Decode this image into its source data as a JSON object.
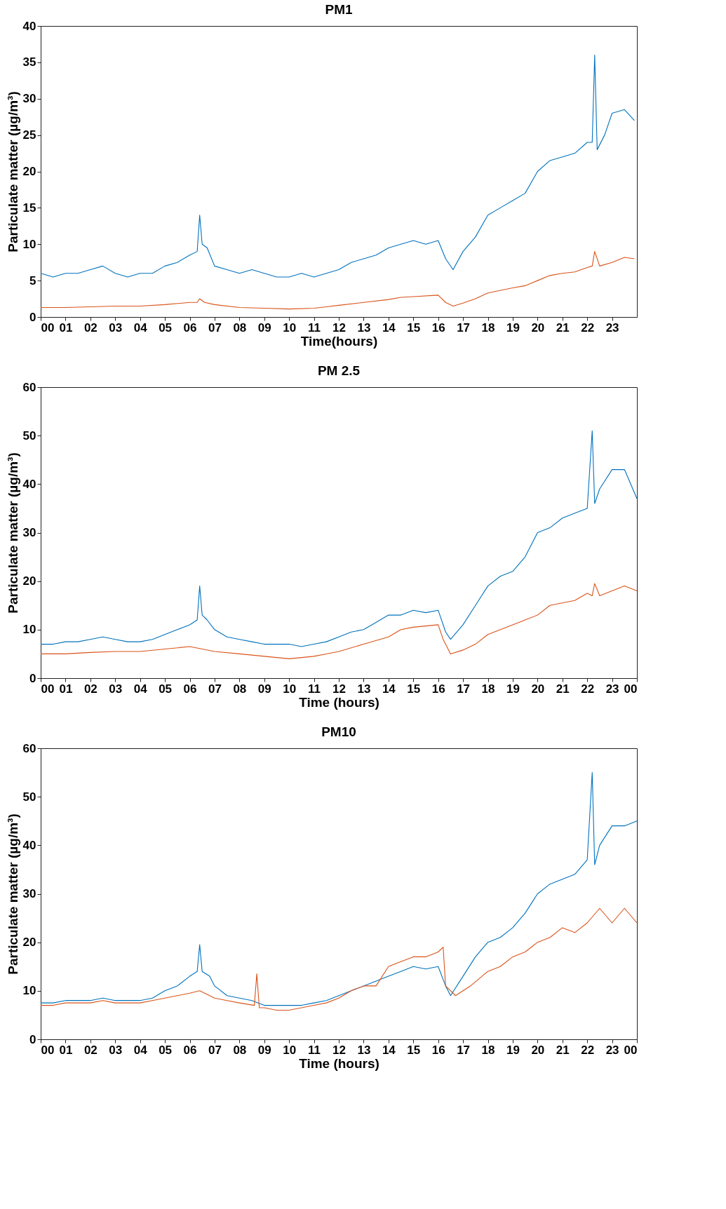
{
  "chart_data": [
    {
      "type": "line",
      "title": "PM1",
      "xlabel": "Time(hours)",
      "ylabel": "Particulate matter (µg/m³)",
      "xlim": [
        0,
        24
      ],
      "ylim": [
        0,
        40
      ],
      "yticks": [
        0,
        5,
        10,
        15,
        20,
        25,
        30,
        35,
        40
      ],
      "xticks": [
        {
          "value": 0,
          "label": "00"
        },
        {
          "value": 1,
          "label": "01"
        },
        {
          "value": 2,
          "label": "02"
        },
        {
          "value": 3,
          "label": "03"
        },
        {
          "value": 4,
          "label": "04"
        },
        {
          "value": 5,
          "label": "05"
        },
        {
          "value": 6,
          "label": "06"
        },
        {
          "value": 7,
          "label": "07"
        },
        {
          "value": 8,
          "label": "08"
        },
        {
          "value": 9,
          "label": "09"
        },
        {
          "value": 10,
          "label": "10"
        },
        {
          "value": 11,
          "label": "11"
        },
        {
          "value": 12,
          "label": "12"
        },
        {
          "value": 13,
          "label": "13"
        },
        {
          "value": 14,
          "label": "14"
        },
        {
          "value": 15,
          "label": "15"
        },
        {
          "value": 16,
          "label": "16"
        },
        {
          "value": 17,
          "label": "17"
        },
        {
          "value": 18,
          "label": "18"
        },
        {
          "value": 19,
          "label": "19"
        },
        {
          "value": 20,
          "label": "20"
        },
        {
          "value": 21,
          "label": "21"
        },
        {
          "value": 22,
          "label": "22"
        },
        {
          "value": 23,
          "label": "23"
        }
      ],
      "grid": false,
      "legend": false,
      "series": [
        {
          "color": "#0072bd",
          "x": [
            0,
            0.5,
            1,
            1.5,
            2,
            2.5,
            3,
            3.5,
            4,
            4.5,
            5,
            5.5,
            6,
            6.3,
            6.4,
            6.5,
            6.7,
            7,
            7.5,
            8,
            8.5,
            9,
            9.5,
            10,
            10.5,
            11,
            11.5,
            12,
            12.5,
            13,
            13.5,
            14,
            14.5,
            15,
            15.5,
            16,
            16.3,
            16.6,
            17,
            17.5,
            18,
            18.5,
            19,
            19.5,
            20,
            20.5,
            21,
            21.5,
            22,
            22.2,
            22.3,
            22.4,
            22.7,
            23,
            23.5,
            23.9
          ],
          "values": [
            6,
            5.5,
            6,
            6,
            6.5,
            7,
            6,
            5.5,
            6,
            6,
            7,
            7.5,
            8.5,
            9,
            14,
            10,
            9.5,
            7,
            6.5,
            6,
            6.5,
            6,
            5.5,
            5.5,
            6,
            5.5,
            6,
            6.5,
            7.5,
            8,
            8.5,
            9.5,
            10,
            10.5,
            10,
            10.5,
            8,
            6.5,
            9,
            11,
            14,
            15,
            16,
            17,
            20,
            21.5,
            22,
            22.5,
            24,
            24,
            36,
            23,
            25,
            28,
            28.5,
            27
          ]
        },
        {
          "color": "#d95319",
          "x": [
            0,
            1,
            2,
            3,
            4,
            5,
            6,
            6.3,
            6.4,
            6.6,
            7,
            8,
            9,
            10,
            11,
            11.5,
            12,
            13,
            14,
            14.5,
            15,
            16,
            16.3,
            16.6,
            17,
            17.5,
            18,
            19,
            19.5,
            20,
            20.5,
            21,
            21.5,
            22,
            22.2,
            22.3,
            22.5,
            23,
            23.5,
            23.9
          ],
          "values": [
            1.3,
            1.3,
            1.4,
            1.5,
            1.5,
            1.7,
            2,
            2,
            2.5,
            2,
            1.7,
            1.3,
            1.2,
            1.1,
            1.2,
            1.4,
            1.6,
            2,
            2.4,
            2.7,
            2.8,
            3,
            2,
            1.5,
            1.9,
            2.5,
            3.3,
            4,
            4.3,
            5,
            5.7,
            6,
            6.2,
            6.8,
            7,
            9,
            7,
            7.5,
            8.2,
            8
          ]
        }
      ]
    },
    {
      "type": "line",
      "title": "PM 2.5",
      "xlabel": "Time (hours)",
      "ylabel": "Particulate matter (µg/m³)",
      "xlim": [
        0,
        24
      ],
      "ylim": [
        0,
        60
      ],
      "yticks": [
        0,
        10,
        20,
        30,
        40,
        50,
        60
      ],
      "xticks": [
        {
          "value": 0,
          "label": "00"
        },
        {
          "value": 1,
          "label": "01"
        },
        {
          "value": 2,
          "label": "02"
        },
        {
          "value": 3,
          "label": "03"
        },
        {
          "value": 4,
          "label": "04"
        },
        {
          "value": 5,
          "label": "05"
        },
        {
          "value": 6,
          "label": "06"
        },
        {
          "value": 7,
          "label": "07"
        },
        {
          "value": 8,
          "label": "08"
        },
        {
          "value": 9,
          "label": "09"
        },
        {
          "value": 10,
          "label": "10"
        },
        {
          "value": 11,
          "label": "11"
        },
        {
          "value": 12,
          "label": "12"
        },
        {
          "value": 13,
          "label": "13"
        },
        {
          "value": 14,
          "label": "14"
        },
        {
          "value": 15,
          "label": "15"
        },
        {
          "value": 16,
          "label": "16"
        },
        {
          "value": 17,
          "label": "17"
        },
        {
          "value": 18,
          "label": "18"
        },
        {
          "value": 19,
          "label": "19"
        },
        {
          "value": 20,
          "label": "20"
        },
        {
          "value": 21,
          "label": "21"
        },
        {
          "value": 22,
          "label": "22"
        },
        {
          "value": 23,
          "label": "23"
        },
        {
          "value": 24,
          "label": "00"
        }
      ],
      "grid": false,
      "legend": false,
      "series": [
        {
          "color": "#0072bd",
          "x": [
            0,
            0.5,
            1,
            1.5,
            2,
            2.5,
            3,
            3.5,
            4,
            4.5,
            5,
            5.5,
            6,
            6.3,
            6.4,
            6.5,
            6.7,
            7,
            7.5,
            8,
            8.5,
            9,
            9.5,
            10,
            10.5,
            11,
            11.5,
            12,
            12.5,
            13,
            13.5,
            14,
            14.5,
            15,
            15.5,
            16,
            16.3,
            16.5,
            17,
            17.5,
            18,
            18.5,
            19,
            19.5,
            20,
            20.5,
            21,
            21.5,
            22,
            22.2,
            22.3,
            22.5,
            23,
            23.5,
            24
          ],
          "values": [
            7,
            7,
            7.5,
            7.5,
            8,
            8.5,
            8,
            7.5,
            7.5,
            8,
            9,
            10,
            11,
            12,
            19,
            13,
            12,
            10,
            8.5,
            8,
            7.5,
            7,
            7,
            7,
            6.5,
            7,
            7.5,
            8.5,
            9.5,
            10,
            11.5,
            13,
            13,
            14,
            13.5,
            14,
            9.5,
            8,
            11,
            15,
            19,
            21,
            22,
            25,
            30,
            31,
            33,
            34,
            35,
            51,
            36,
            39,
            43,
            43,
            37
          ]
        },
        {
          "color": "#d95319",
          "x": [
            0,
            1,
            2,
            3,
            4,
            5,
            6,
            6.5,
            7,
            8,
            9,
            10,
            11,
            11.5,
            12,
            13,
            14,
            14.5,
            15,
            16,
            16.2,
            16.5,
            17,
            17.5,
            18,
            19,
            19.5,
            20,
            20.5,
            21,
            21.5,
            22,
            22.2,
            22.3,
            22.5,
            23,
            23.5,
            24
          ],
          "values": [
            5,
            5,
            5.3,
            5.5,
            5.5,
            6,
            6.5,
            6,
            5.5,
            5,
            4.5,
            4,
            4.5,
            5,
            5.5,
            7,
            8.5,
            10,
            10.5,
            11,
            8,
            5,
            5.8,
            7,
            9,
            11,
            12,
            13,
            15,
            15.5,
            16,
            17.5,
            17,
            19.5,
            17,
            18,
            19,
            18
          ]
        }
      ]
    },
    {
      "type": "line",
      "title": "PM10",
      "xlabel": "Time (hours)",
      "ylabel": "Particulate matter (µg/m³)",
      "xlim": [
        0,
        24
      ],
      "ylim": [
        0,
        60
      ],
      "yticks": [
        0,
        10,
        20,
        30,
        40,
        50,
        60
      ],
      "xticks": [
        {
          "value": 0,
          "label": "00"
        },
        {
          "value": 1,
          "label": "01"
        },
        {
          "value": 2,
          "label": "02"
        },
        {
          "value": 3,
          "label": "03"
        },
        {
          "value": 4,
          "label": "04"
        },
        {
          "value": 5,
          "label": "05"
        },
        {
          "value": 6,
          "label": "06"
        },
        {
          "value": 7,
          "label": "07"
        },
        {
          "value": 8,
          "label": "08"
        },
        {
          "value": 9,
          "label": "09"
        },
        {
          "value": 10,
          "label": "10"
        },
        {
          "value": 11,
          "label": "11"
        },
        {
          "value": 12,
          "label": "12"
        },
        {
          "value": 13,
          "label": "13"
        },
        {
          "value": 14,
          "label": "14"
        },
        {
          "value": 15,
          "label": "15"
        },
        {
          "value": 16,
          "label": "16"
        },
        {
          "value": 17,
          "label": "17"
        },
        {
          "value": 18,
          "label": "18"
        },
        {
          "value": 19,
          "label": "19"
        },
        {
          "value": 20,
          "label": "20"
        },
        {
          "value": 21,
          "label": "21"
        },
        {
          "value": 22,
          "label": "22"
        },
        {
          "value": 23,
          "label": "23"
        },
        {
          "value": 24,
          "label": "00"
        }
      ],
      "grid": false,
      "legend": false,
      "series": [
        {
          "color": "#0072bd",
          "x": [
            0,
            0.5,
            1,
            1.5,
            2,
            2.5,
            3,
            3.5,
            4,
            4.5,
            5,
            5.5,
            6,
            6.3,
            6.4,
            6.5,
            6.8,
            7,
            7.5,
            8,
            8.5,
            9,
            9.5,
            10,
            10.5,
            11,
            11.5,
            12,
            12.5,
            13,
            13.5,
            14,
            14.5,
            15,
            15.5,
            16,
            16.3,
            16.5,
            17,
            17.5,
            18,
            18.5,
            19,
            19.5,
            20,
            20.5,
            21,
            21.5,
            22,
            22.2,
            22.3,
            22.5,
            23,
            23.5,
            24
          ],
          "values": [
            7.5,
            7.5,
            8,
            8,
            8,
            8.5,
            8,
            8,
            8,
            8.5,
            10,
            11,
            13,
            14,
            19.5,
            14,
            13,
            11,
            9,
            8.5,
            8,
            7,
            7,
            7,
            7,
            7.5,
            8,
            9,
            10,
            11,
            12,
            13,
            14,
            15,
            14.5,
            15,
            11,
            9,
            13,
            17,
            20,
            21,
            23,
            26,
            30,
            32,
            33,
            34,
            37,
            55,
            36,
            40,
            44,
            44,
            45
          ]
        },
        {
          "color": "#d95319",
          "x": [
            0,
            0.5,
            1,
            1.5,
            2,
            2.5,
            3,
            3.5,
            4,
            4.5,
            5,
            5.5,
            6,
            6.4,
            7,
            7.5,
            8,
            8.6,
            8.7,
            8.8,
            9,
            9.5,
            10,
            10.5,
            11,
            11.5,
            12,
            12.5,
            13,
            13.5,
            14,
            14.5,
            15,
            15.5,
            16,
            16.2,
            16.3,
            16.7,
            17,
            17.3,
            18,
            18.5,
            19,
            19.5,
            20,
            20.5,
            21,
            21.5,
            22,
            22.5,
            23,
            23.5,
            24
          ],
          "values": [
            7,
            7,
            7.5,
            7.5,
            7.5,
            8,
            7.5,
            7.5,
            7.5,
            8,
            8.5,
            9,
            9.5,
            10,
            8.5,
            8,
            7.5,
            7,
            13.5,
            6.5,
            6.5,
            6,
            6,
            6.5,
            7,
            7.5,
            8.5,
            10,
            11,
            11,
            15,
            16,
            17,
            17,
            18,
            19,
            11,
            9,
            10,
            11,
            14,
            15,
            17,
            18,
            20,
            21,
            23,
            22,
            24,
            27,
            24,
            27,
            24
          ]
        }
      ]
    }
  ]
}
